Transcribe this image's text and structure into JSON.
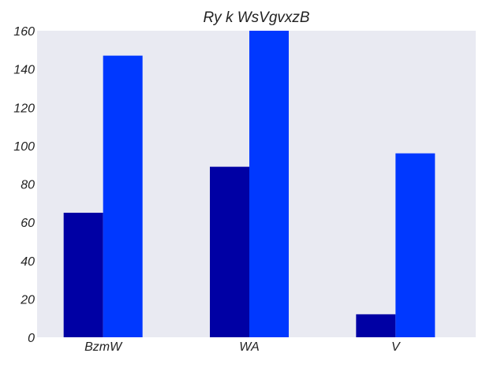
{
  "chart_data": {
    "type": "bar",
    "title": "Ry k WsVgvxzB",
    "categories": [
      "BzmW",
      "WA",
      "V"
    ],
    "series": [
      {
        "values": [
          65,
          89,
          12
        ],
        "color": "#0000a4"
      },
      {
        "values": [
          147,
          160,
          96
        ],
        "color": "#0038ff"
      }
    ],
    "ylim": [
      0,
      160
    ],
    "yticks": [
      0,
      20,
      40,
      60,
      80,
      100,
      120,
      140,
      160
    ],
    "grid": false,
    "background_color": "#e9eaf2"
  }
}
